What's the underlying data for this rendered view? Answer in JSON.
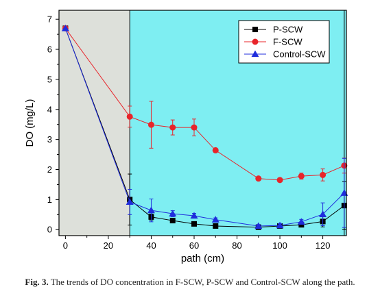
{
  "chart_data": {
    "type": "line",
    "xlabel": "path (cm)",
    "ylabel": "DO (mg/L)",
    "xlim": [
      -3,
      131
    ],
    "ylim": [
      -0.2,
      7.3
    ],
    "xticks": [
      0,
      20,
      40,
      60,
      80,
      100,
      120
    ],
    "yticks": [
      0,
      1,
      2,
      3,
      4,
      5,
      6,
      7
    ],
    "regions": [
      {
        "from": -3,
        "to": 30,
        "color": "#dde0da"
      },
      {
        "from": 30,
        "to": 131,
        "color": "#7eeef2"
      }
    ],
    "legend_position": "top-right",
    "series": [
      {
        "name": "P-SCW",
        "color": "#000000",
        "marker": "square",
        "x": [
          0,
          30,
          40,
          50,
          60,
          70,
          90,
          100,
          110,
          120,
          130
        ],
        "y": [
          6.7,
          1.0,
          0.42,
          0.3,
          0.19,
          0.12,
          0.08,
          0.12,
          0.16,
          0.27,
          0.8
        ],
        "err": [
          0.0,
          0.85,
          0.1,
          0.06,
          0.05,
          0.04,
          0.04,
          0.05,
          0.06,
          0.18,
          0.8
        ]
      },
      {
        "name": "F-SCW",
        "color": "#e8242a",
        "marker": "circle",
        "x": [
          0,
          30,
          40,
          50,
          60,
          70,
          90,
          100,
          110,
          120,
          130
        ],
        "y": [
          6.7,
          3.76,
          3.49,
          3.4,
          3.4,
          2.64,
          1.7,
          1.65,
          1.78,
          1.82,
          2.13
        ],
        "err": [
          0.0,
          0.35,
          0.78,
          0.25,
          0.28,
          0.05,
          0.04,
          0.06,
          0.1,
          0.2,
          0.25
        ]
      },
      {
        "name": "Control-SCW",
        "color": "#1f2ddc",
        "marker": "triangle",
        "x": [
          0,
          30,
          40,
          50,
          60,
          70,
          90,
          100,
          110,
          120,
          130
        ],
        "y": [
          6.7,
          0.92,
          0.64,
          0.53,
          0.46,
          0.33,
          0.12,
          0.14,
          0.26,
          0.51,
          1.22
        ],
        "err": [
          0.0,
          0.42,
          0.38,
          0.1,
          0.08,
          0.06,
          0.05,
          0.06,
          0.08,
          0.38,
          1.15
        ]
      }
    ]
  },
  "caption": {
    "label": "Fig. 3.",
    "text": " The trends of DO concentration in F-SCW, P-SCW and Control-SCW along the path."
  }
}
